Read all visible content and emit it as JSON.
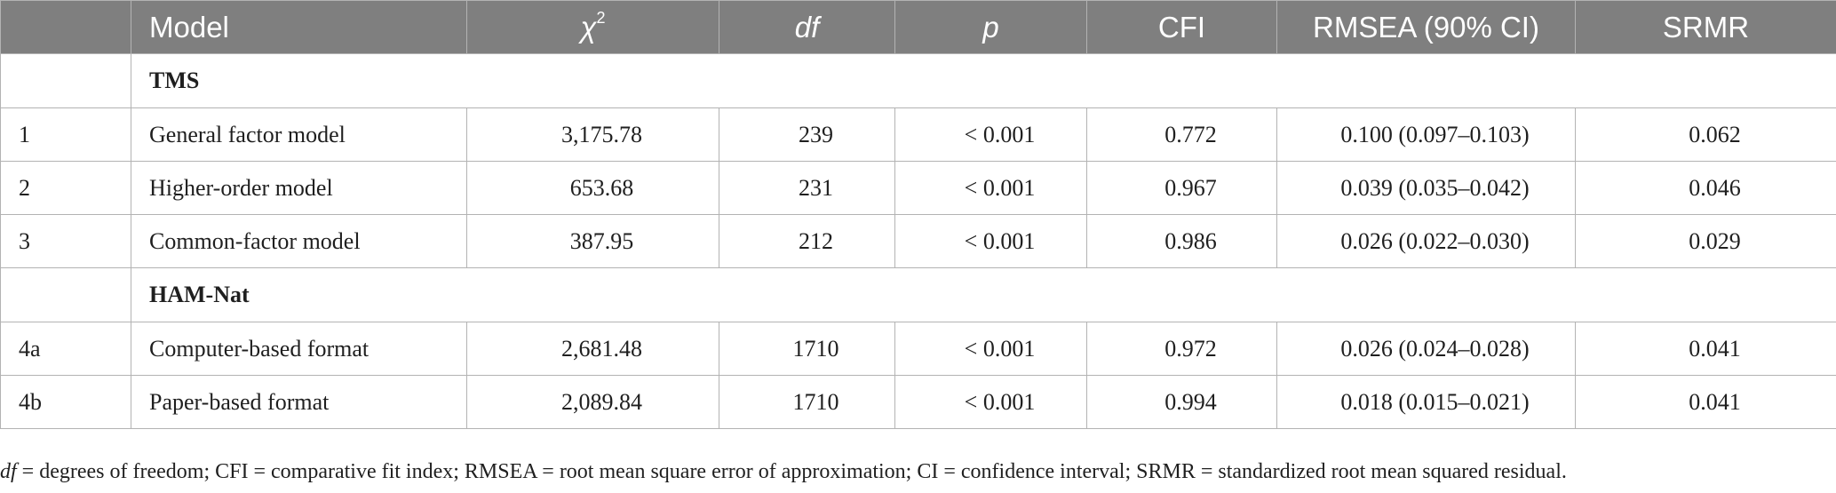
{
  "table": {
    "headers": {
      "index": "",
      "model": "Model",
      "chi2_base": "χ",
      "chi2_sup": "2",
      "df": "df",
      "p": "p",
      "cfi": "CFI",
      "rmsea": "RMSEA (90% CI)",
      "srmr": "SRMR"
    },
    "sections": [
      {
        "label": "TMS",
        "rows": [
          {
            "id": "1",
            "model": "General factor model",
            "chi2": "3,175.78",
            "df": "239",
            "p": "< 0.001",
            "cfi": "0.772",
            "rmsea": "0.100 (0.097–0.103)",
            "srmr": "0.062"
          },
          {
            "id": "2",
            "model": "Higher-order model",
            "chi2": "653.68",
            "df": "231",
            "p": "< 0.001",
            "cfi": "0.967",
            "rmsea": "0.039 (0.035–0.042)",
            "srmr": "0.046"
          },
          {
            "id": "3",
            "model": "Common-factor model",
            "chi2": "387.95",
            "df": "212",
            "p": "< 0.001",
            "cfi": "0.986",
            "rmsea": "0.026 (0.022–0.030)",
            "srmr": "0.029"
          }
        ]
      },
      {
        "label": "HAM-Nat",
        "rows": [
          {
            "id": "4a",
            "model": "Computer-based format",
            "chi2": "2,681.48",
            "df": "1710",
            "p": "< 0.001",
            "cfi": "0.972",
            "rmsea": "0.026 (0.024–0.028)",
            "srmr": "0.041"
          },
          {
            "id": "4b",
            "model": "Paper-based format",
            "chi2": "2,089.84",
            "df": "1710",
            "p": "< 0.001",
            "cfi": "0.994",
            "rmsea": "0.018 (0.015–0.021)",
            "srmr": "0.041"
          }
        ]
      }
    ]
  },
  "note": {
    "df_term": "df",
    "text": " = degrees of freedom; CFI = comparative fit index; RMSEA = root mean square error of approximation; CI = confidence interval; SRMR = standardized root mean squared residual."
  }
}
